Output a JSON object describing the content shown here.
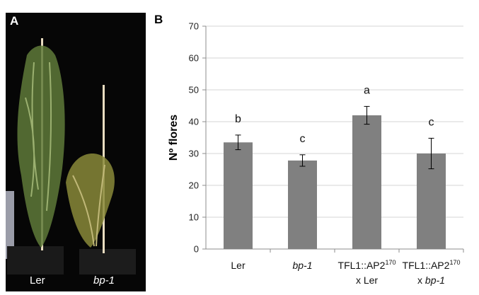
{
  "panel_a": {
    "letter": "A",
    "caption_left": "Ler",
    "caption_right": "bp-1"
  },
  "panel_b": {
    "letter": "B"
  },
  "chart_data": {
    "type": "bar",
    "ylabel": "Nº flores",
    "ylim": [
      0,
      70
    ],
    "yticks": [
      0,
      10,
      20,
      30,
      40,
      50,
      60,
      70
    ],
    "grid": true,
    "bar_color": "#808080",
    "categories": [
      {
        "line1": "Ler",
        "sup": "",
        "line2": "",
        "line2_italic": "",
        "italic": false
      },
      {
        "line1": "bp-1",
        "sup": "",
        "line2": "",
        "line2_italic": "",
        "italic": true
      },
      {
        "line1": "TFL1::AP2",
        "sup": "170",
        "line2": "x Ler",
        "line2_italic": "",
        "italic": false
      },
      {
        "line1": "TFL1::AP2",
        "sup": "170",
        "line2": "x ",
        "line2_italic": "bp-1",
        "italic": false
      }
    ],
    "values": [
      33.5,
      27.8,
      42.0,
      30.0
    ],
    "errors": [
      2.3,
      1.8,
      2.8,
      4.8
    ],
    "significance": [
      "b",
      "c",
      "a",
      "c"
    ]
  }
}
